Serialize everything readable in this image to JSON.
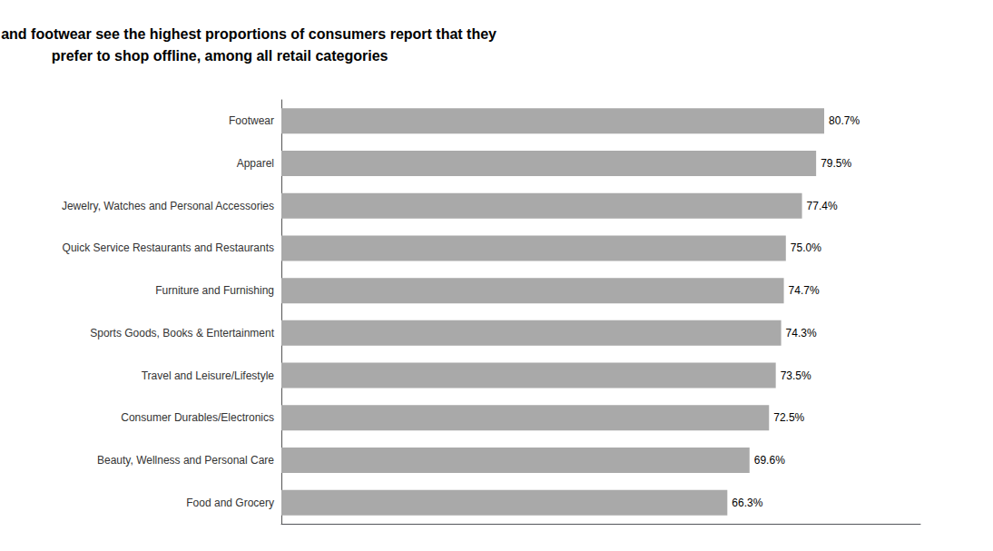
{
  "chart_data": {
    "type": "bar",
    "orientation": "horizontal",
    "title": "Apparel and footwear see the highest proportions of consumers report that they\nprefer to shop offline, among all retail categories",
    "categories": [
      "Food and Grocery",
      "Beauty, Wellness and Personal Care",
      "Consumer Durables/Electronics",
      "Travel and Leisure/Lifestyle",
      "Sports Goods, Books & Entertainment",
      "Furniture and Furnishing",
      "Quick Service Restaurants and Restaurants",
      "Jewelry, Watches and Personal Accessories",
      "Apparel",
      "Footwear"
    ],
    "values": [
      66.3,
      69.6,
      72.5,
      73.5,
      74.3,
      74.7,
      75.0,
      77.4,
      79.5,
      80.7
    ],
    "value_labels": [
      "66.3%",
      "69.6%",
      "72.5%",
      "73.5%",
      "74.3%",
      "74.7%",
      "75.0%",
      "77.4%",
      "79.5%",
      "80.7%"
    ],
    "data_labels": true,
    "color": "#a9a9a9",
    "xlim": [
      0,
      95
    ],
    "grid": false,
    "tick_labels": "y"
  }
}
